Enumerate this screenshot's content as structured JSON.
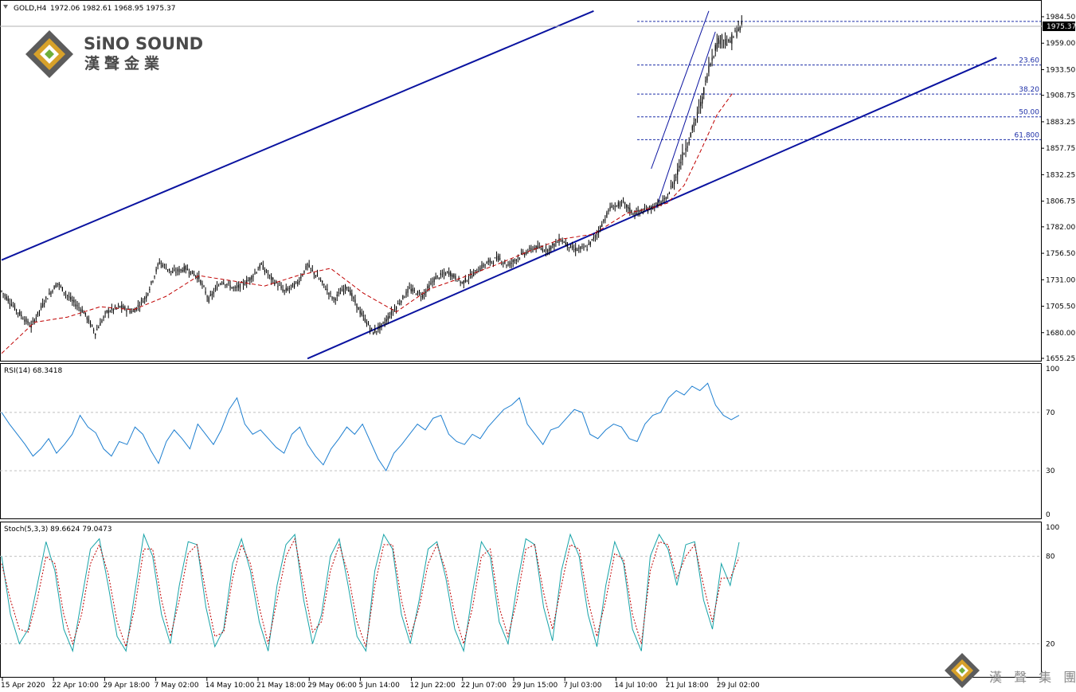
{
  "header": {
    "symbol_label": "GOLD,H4",
    "ohlc_label": "1972.06 1982.61 1968.95 1975.37"
  },
  "logo": {
    "name_en": "SiNO SOUND",
    "name_cn": "漢聲金業"
  },
  "watermark": {
    "name_cn": "漢 聲 集 團"
  },
  "colors": {
    "candle": "#000000",
    "ma": "#c00000",
    "channel": "#0a13a0",
    "fib": "#1d2fa8",
    "rsi": "#1e7fd0",
    "stoch_main": "#17a3a8",
    "stoch_signal": "#c00000"
  },
  "current_price_label": "1975.37",
  "fib_labels": [
    "23.60",
    "38.20",
    "50.00",
    "61.800"
  ],
  "indicators": {
    "rsi_label": "RSI(14) 68.3418",
    "stoch_label": "Stoch(5,3,3) 89.6624 79.0473"
  },
  "chart_data": [
    {
      "type": "candlestick",
      "title": "GOLD,H4",
      "y_ticks": [
        "1984.50",
        "1959.00",
        "1933.50",
        "1908.75",
        "1883.25",
        "1857.75",
        "1832.25",
        "1806.75",
        "1782.00",
        "1756.50",
        "1731.00",
        "1705.50",
        "1680.00",
        "1655.25"
      ],
      "ylim": [
        1655.25,
        1984.5
      ],
      "x_ticks": [
        "15 Apr 2020",
        "22 Apr 10:00",
        "29 Apr 18:00",
        "7 May 02:00",
        "14 May 10:00",
        "21 May 18:00",
        "29 May 06:00",
        "5 Jun 14:00",
        "12 Jun 22:00",
        "22 Jun 07:00",
        "29 Jun 15:00",
        "7 Jul 03:00",
        "14 Jul 10:00",
        "21 Jul 18:00",
        "29 Jul 02:00"
      ],
      "last_close": 1975.37,
      "fibonacci": [
        {
          "level": "23.60",
          "price": 1938
        },
        {
          "level": "38.20",
          "price": 1910
        },
        {
          "level": "50.00",
          "price": 1888
        },
        {
          "level": "61.800",
          "price": 1866
        }
      ],
      "close_path": [
        [
          0,
          1720
        ],
        [
          10,
          1700
        ],
        [
          18,
          1686
        ],
        [
          26,
          1710
        ],
        [
          34,
          1728
        ],
        [
          42,
          1712
        ],
        [
          50,
          1700
        ],
        [
          57,
          1680
        ],
        [
          64,
          1700
        ],
        [
          72,
          1705
        ],
        [
          80,
          1700
        ],
        [
          88,
          1715
        ],
        [
          96,
          1748
        ],
        [
          104,
          1738
        ],
        [
          112,
          1742
        ],
        [
          120,
          1733
        ],
        [
          126,
          1712
        ],
        [
          134,
          1730
        ],
        [
          142,
          1722
        ],
        [
          150,
          1730
        ],
        [
          158,
          1745
        ],
        [
          164,
          1732
        ],
        [
          172,
          1720
        ],
        [
          180,
          1728
        ],
        [
          186,
          1745
        ],
        [
          194,
          1730
        ],
        [
          202,
          1712
        ],
        [
          210,
          1725
        ],
        [
          218,
          1700
        ],
        [
          226,
          1680
        ],
        [
          232,
          1688
        ],
        [
          240,
          1705
        ],
        [
          248,
          1722
        ],
        [
          256,
          1716
        ],
        [
          264,
          1733
        ],
        [
          272,
          1738
        ],
        [
          280,
          1728
        ],
        [
          288,
          1738
        ],
        [
          294,
          1746
        ],
        [
          302,
          1752
        ],
        [
          308,
          1745
        ],
        [
          316,
          1755
        ],
        [
          324,
          1762
        ],
        [
          332,
          1760
        ],
        [
          340,
          1770
        ],
        [
          348,
          1760
        ],
        [
          356,
          1762
        ],
        [
          362,
          1775
        ],
        [
          370,
          1800
        ],
        [
          378,
          1805
        ],
        [
          384,
          1795
        ],
        [
          392,
          1798
        ],
        [
          398,
          1803
        ],
        [
          404,
          1808
        ],
        [
          408,
          1822
        ],
        [
          414,
          1850
        ],
        [
          420,
          1875
        ],
        [
          426,
          1905
        ],
        [
          430,
          1935
        ],
        [
          434,
          1955
        ],
        [
          438,
          1965
        ],
        [
          442,
          1958
        ],
        [
          446,
          1968
        ],
        [
          450,
          1975.37
        ]
      ],
      "moving_average": [
        [
          0,
          1660
        ],
        [
          20,
          1690
        ],
        [
          40,
          1695
        ],
        [
          60,
          1705
        ],
        [
          80,
          1702
        ],
        [
          100,
          1715
        ],
        [
          120,
          1735
        ],
        [
          140,
          1730
        ],
        [
          160,
          1725
        ],
        [
          180,
          1735
        ],
        [
          200,
          1742
        ],
        [
          220,
          1718
        ],
        [
          240,
          1700
        ],
        [
          260,
          1722
        ],
        [
          280,
          1733
        ],
        [
          300,
          1745
        ],
        [
          320,
          1758
        ],
        [
          340,
          1770
        ],
        [
          360,
          1775
        ],
        [
          380,
          1795
        ],
        [
          395,
          1800
        ],
        [
          405,
          1805
        ],
        [
          415,
          1822
        ],
        [
          425,
          1855
        ],
        [
          435,
          1890
        ],
        [
          445,
          1912
        ]
      ],
      "channel_lines": [
        {
          "from": [
            0,
            1750
          ],
          "to": [
            360,
            1990
          ]
        },
        {
          "from": [
            186,
            1655
          ],
          "to": [
            605,
            1945
          ]
        },
        {
          "from": [
            395,
            1838
          ],
          "to": [
            430,
            1990
          ]
        },
        {
          "from": [
            398,
            1800
          ],
          "to": [
            434,
            1970
          ]
        }
      ]
    },
    {
      "type": "line",
      "title": "RSI(14) 68.3418",
      "ylim": [
        0,
        100
      ],
      "y_ticks": [
        "100",
        "70",
        "30",
        "0"
      ],
      "levels": [
        70,
        30
      ],
      "values": [
        70,
        62,
        55,
        48,
        40,
        45,
        52,
        42,
        48,
        55,
        68,
        60,
        56,
        45,
        40,
        50,
        48,
        60,
        55,
        44,
        35,
        50,
        58,
        52,
        45,
        62,
        55,
        48,
        58,
        72,
        80,
        62,
        55,
        58,
        52,
        46,
        42,
        55,
        60,
        48,
        40,
        34,
        45,
        52,
        60,
        55,
        62,
        50,
        38,
        30,
        42,
        48,
        55,
        62,
        58,
        66,
        68,
        55,
        50,
        48,
        55,
        52,
        60,
        66,
        72,
        75,
        80,
        62,
        55,
        48,
        58,
        60,
        66,
        72,
        70,
        55,
        52,
        58,
        62,
        60,
        52,
        50,
        62,
        68,
        70,
        80,
        85,
        82,
        88,
        85,
        90,
        75,
        68,
        65,
        68
      ]
    },
    {
      "type": "line",
      "title": "Stoch(5,3,3) 89.6624 79.0473",
      "ylim": [
        0,
        100
      ],
      "y_ticks": [
        "100",
        "80",
        "20"
      ],
      "levels": [
        80,
        20
      ],
      "series": [
        {
          "values": [
            80,
            40,
            20,
            30,
            60,
            90,
            70,
            30,
            15,
            50,
            85,
            92,
            60,
            25,
            15,
            55,
            95,
            80,
            40,
            20,
            60,
            90,
            88,
            45,
            18,
            30,
            75,
            92,
            70,
            35,
            15,
            60,
            88,
            95,
            50,
            20,
            40,
            80,
            92,
            60,
            25,
            15,
            70,
            95,
            85,
            40,
            20,
            50,
            85,
            90,
            65,
            30,
            15,
            55,
            90,
            80,
            35,
            20,
            60,
            92,
            88,
            45,
            22,
            70,
            95,
            80,
            40,
            18,
            60,
            90,
            75,
            30,
            15,
            80,
            95,
            85,
            60,
            88,
            90,
            50,
            30,
            75,
            60,
            89.66
          ]
        },
        {
          "values": [
            75,
            50,
            30,
            28,
            50,
            80,
            75,
            40,
            20,
            40,
            75,
            88,
            68,
            35,
            18,
            45,
            85,
            85,
            50,
            25,
            50,
            82,
            88,
            55,
            25,
            28,
            65,
            88,
            75,
            45,
            20,
            50,
            80,
            92,
            60,
            28,
            35,
            70,
            88,
            68,
            35,
            18,
            60,
            88,
            88,
            50,
            25,
            45,
            75,
            88,
            70,
            40,
            20,
            45,
            80,
            85,
            45,
            25,
            50,
            85,
            88,
            55,
            30,
            60,
            88,
            85,
            50,
            25,
            50,
            82,
            78,
            40,
            20,
            70,
            90,
            88,
            65,
            80,
            88,
            60,
            35,
            65,
            65,
            79.05
          ]
        }
      ]
    }
  ]
}
